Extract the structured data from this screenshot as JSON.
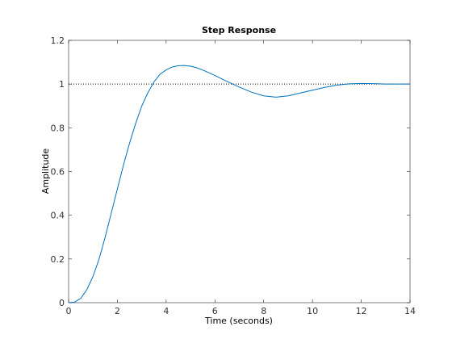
{
  "chart_data": {
    "type": "line",
    "title": "Step Response",
    "xlabel": "Time (seconds)",
    "ylabel": "Amplitude",
    "xlim": [
      0,
      14
    ],
    "ylim": [
      0,
      1.2
    ],
    "xticks": [
      0,
      2,
      4,
      6,
      8,
      10,
      12,
      14
    ],
    "yticks": [
      0,
      0.2,
      0.4,
      0.6,
      0.8,
      1,
      1.2
    ],
    "xtick_labels": [
      "0",
      "2",
      "4",
      "6",
      "8",
      "10",
      "12",
      "14"
    ],
    "ytick_labels": [
      "0",
      "0.2",
      "0.4",
      "0.6",
      "0.8",
      "1",
      "1.2"
    ],
    "grid": false,
    "reference_line": {
      "y": 1.0,
      "style": "dotted",
      "color": "#000000"
    },
    "series": [
      {
        "color": "#0072bd",
        "x": [
          0,
          0.25,
          0.5,
          0.75,
          1.0,
          1.25,
          1.5,
          1.75,
          2.0,
          2.25,
          2.5,
          2.75,
          3.0,
          3.25,
          3.5,
          3.75,
          4.0,
          4.25,
          4.5,
          4.75,
          5.0,
          5.25,
          5.5,
          5.75,
          6.0,
          6.5,
          7.0,
          7.5,
          8.0,
          8.5,
          9.0,
          9.5,
          10.0,
          10.5,
          11.0,
          11.5,
          12.0,
          12.5,
          13.0,
          13.5,
          14.0
        ],
        "y": [
          0,
          0.003,
          0.02,
          0.06,
          0.12,
          0.2,
          0.3,
          0.41,
          0.52,
          0.63,
          0.73,
          0.82,
          0.9,
          0.96,
          1.01,
          1.045,
          1.065,
          1.078,
          1.084,
          1.085,
          1.082,
          1.075,
          1.064,
          1.052,
          1.039,
          1.012,
          0.986,
          0.963,
          0.946,
          0.94,
          0.946,
          0.959,
          0.972,
          0.985,
          0.995,
          1.001,
          1.003,
          1.002,
          1.0,
          1.0,
          1.0
        ]
      }
    ]
  }
}
